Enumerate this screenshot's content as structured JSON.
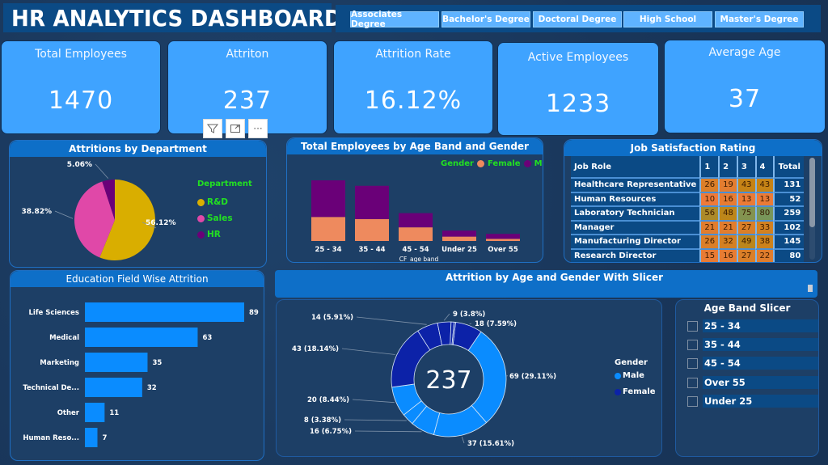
{
  "header": {
    "title": "HR ANALYTICS DASHBOARD"
  },
  "education_slicer": {
    "options": [
      "Associates Degree",
      "Bachelor's Degree",
      "Doctoral Degree",
      "High School",
      "Master's Degree"
    ]
  },
  "kpis": [
    {
      "label": "Total Employees",
      "value": "1470"
    },
    {
      "label": "Attriton",
      "value": "237"
    },
    {
      "label": "Attrition Rate",
      "value": "16.12%"
    },
    {
      "label": "Active Employees",
      "value": "1233"
    },
    {
      "label": "Average Age",
      "value": "37"
    }
  ],
  "visual_tools": {
    "filter_icon": "filter-icon",
    "focus_icon": "focus-mode-icon",
    "more_label": "···"
  },
  "colors": {
    "kpi_bg": "#3fa3ff",
    "header_blue": "#0e6fc8",
    "rd": "#d9ae00",
    "sales": "#e048a8",
    "hr": "#6a0078",
    "female_bar": "#ee8a5e",
    "male_bar": "#6a0078",
    "edu_bar": "#0a8cff",
    "donut_male": "#0a8cff",
    "donut_female": "#0c22a8",
    "legend_text": "#22e022"
  },
  "chart_data": [
    {
      "id": "dept_pie",
      "type": "pie",
      "title": "Attritions by Department",
      "legend_title": "Department",
      "legend_position": "right",
      "slices": [
        {
          "name": "R&D",
          "value": 56.12,
          "label": "56.12%"
        },
        {
          "name": "Sales",
          "value": 38.82,
          "label": "38.82%"
        },
        {
          "name": "HR",
          "value": 5.06,
          "label": "5.06%"
        }
      ]
    },
    {
      "id": "age_gender_bar",
      "type": "bar",
      "stacked": true,
      "title": "Total Employees by Age Band and Gender",
      "xlabel": "CF_age band",
      "legend_title": "Gender",
      "legend_position": "top-right",
      "categories": [
        "25 - 34",
        "35 - 44",
        "45 - 54",
        "Under 25",
        "Over 55"
      ],
      "series": [
        {
          "name": "Female",
          "values": [
            220,
            200,
            125,
            40,
            20
          ]
        },
        {
          "name": "Male",
          "values": [
            335,
            305,
            130,
            55,
            45
          ]
        }
      ]
    },
    {
      "id": "job_satisfaction",
      "type": "table",
      "title": "Job Satisfaction Rating",
      "columns": [
        "Job Role",
        "1",
        "2",
        "3",
        "4",
        "Total"
      ],
      "rows": [
        {
          "role": "Healthcare Representative",
          "r1": 26,
          "r2": 19,
          "r3": 43,
          "r4": 43,
          "total": 131
        },
        {
          "role": "Human Resources",
          "r1": 10,
          "r2": 16,
          "r3": 13,
          "r4": 13,
          "total": 52
        },
        {
          "role": "Laboratory Technician",
          "r1": 56,
          "r2": 48,
          "r3": 75,
          "r4": 80,
          "total": 259
        },
        {
          "role": "Manager",
          "r1": 21,
          "r2": 21,
          "r3": 27,
          "r4": 33,
          "total": 102
        },
        {
          "role": "Manufacturing Director",
          "r1": 26,
          "r2": 32,
          "r3": 49,
          "r4": 38,
          "total": 145
        },
        {
          "role": "Research Director",
          "r1": 15,
          "r2": 16,
          "r3": 27,
          "r4": 22,
          "total": 80
        }
      ]
    },
    {
      "id": "edu_field_bar",
      "type": "bar",
      "orientation": "horizontal",
      "title": "Education Field Wise Attrition",
      "categories": [
        "Life Sciences",
        "Medical",
        "Marketing",
        "Technical De...",
        "Other",
        "Human Reso..."
      ],
      "values": [
        89,
        63,
        35,
        32,
        11,
        7
      ]
    },
    {
      "id": "age_gender_donut",
      "type": "pie",
      "donut": true,
      "title": "Attrition by Age and Gender With Slicer",
      "center_label": "237",
      "legend_title": "Gender",
      "legend_position": "right",
      "legend": [
        "Male",
        "Female"
      ],
      "slices": [
        {
          "gender": "Female",
          "value": 18,
          "label": "18 (7.59%)"
        },
        {
          "gender": "Male",
          "value": 69,
          "label": "69 (29.11%)"
        },
        {
          "gender": "Male",
          "value": 37,
          "label": "37 (15.61%)"
        },
        {
          "gender": "Male",
          "value": 16,
          "label": "16 (6.75%)"
        },
        {
          "gender": "Male",
          "value": 8,
          "label": "8 (3.38%)"
        },
        {
          "gender": "Male",
          "value": 20,
          "label": "20 (8.44%)"
        },
        {
          "gender": "Female",
          "value": 43,
          "label": "43 (18.14%)"
        },
        {
          "gender": "Female",
          "value": 14,
          "label": "14 (5.91%)"
        },
        {
          "gender": "Female",
          "value": 9,
          "label": "9 (3.8%)"
        },
        {
          "gender": "Female",
          "value": 2,
          "label": ""
        },
        {
          "gender": "Female",
          "value": 1,
          "label": ""
        }
      ]
    }
  ],
  "age_band_slicer": {
    "title": "Age Band Slicer",
    "options": [
      "25 - 34",
      "35 - 44",
      "45 - 54",
      "Over 55",
      "Under 25"
    ]
  }
}
